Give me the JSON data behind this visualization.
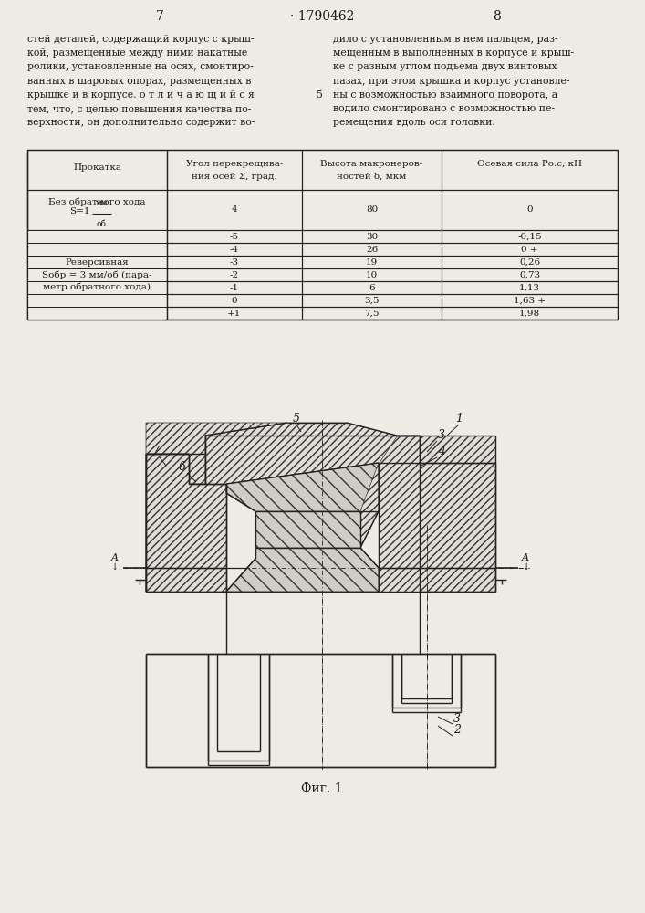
{
  "page_number_left": "7",
  "patent_number": "1790462",
  "page_number_right": "8",
  "left_text_lines": [
    "стей деталей, содержащий корпус с крыш-",
    "кой, размещенные между ними накатные",
    "ролики, установленные на осях, смонтиро-",
    "ванных в шаровых опорах, размещенных в",
    "крышке и в корпусе. о т л и ч а ю щ и й с я",
    "тем, что, с целью повышения качества по-",
    "верхности, он дополнительно содержит во-"
  ],
  "right_text_lines": [
    "дило с установленным в нем пальцем, раз-",
    "мещенным в выполненных в корпусе и крыш-",
    "ке с разным углом подъема двух винтовых",
    "пазах, при этом крышка и корпус установле-",
    "ны с возможностью взаимного поворота, а",
    "водило смонтировано с возможностью пе-",
    "ремещения вдоль оси головки."
  ],
  "col_number": "5",
  "col_number_line": 4,
  "fig_caption": "Фиг. 1",
  "bg_color": "#eeeae4",
  "text_color": "#1a1a1a",
  "line_color": "#222222",
  "hatch_color": "#333333",
  "hatch_face": "#e0dcd6"
}
